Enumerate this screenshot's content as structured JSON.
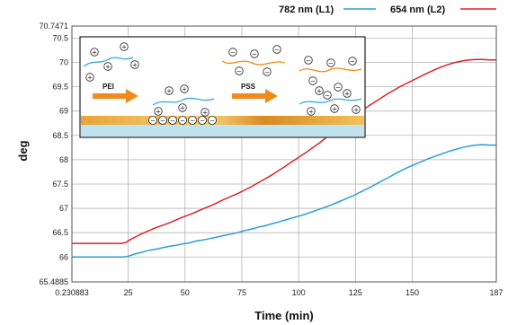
{
  "chart_data": {
    "type": "line",
    "xlabel": "Time (min)",
    "ylabel": "deg",
    "xlim": [
      0.230883,
      187
    ],
    "ylim": [
      65.4885,
      70.7471
    ],
    "x_ticks": [
      {
        "value": 0.230883,
        "label": "0.230883"
      },
      {
        "value": 25,
        "label": "25"
      },
      {
        "value": 50,
        "label": "50"
      },
      {
        "value": 75,
        "label": "75"
      },
      {
        "value": 100,
        "label": "100"
      },
      {
        "value": 125,
        "label": "125"
      },
      {
        "value": 150,
        "label": "150"
      },
      {
        "value": 187,
        "label": "187"
      }
    ],
    "y_ticks": [
      {
        "value": 65.4885,
        "label": "65.4885"
      },
      {
        "value": 66,
        "label": "66"
      },
      {
        "value": 66.5,
        "label": "66.5"
      },
      {
        "value": 67,
        "label": "67"
      },
      {
        "value": 67.5,
        "label": "67.5"
      },
      {
        "value": 68,
        "label": "68"
      },
      {
        "value": 68.5,
        "label": "68.5"
      },
      {
        "value": 69,
        "label": "69"
      },
      {
        "value": 69.5,
        "label": "69.5"
      },
      {
        "value": 70,
        "label": "70"
      },
      {
        "value": 70.5,
        "label": "70.5"
      },
      {
        "value": 70.7471,
        "label": "70.7471"
      }
    ],
    "grid": true,
    "legend_position": "top-right",
    "series": [
      {
        "name": "782 nm (L1)",
        "color": "#2a9fd0",
        "x": [
          0.23,
          23.0,
          24.5,
          26.5,
          28.5,
          30.5,
          32.5,
          34.5,
          37,
          40,
          43,
          46,
          49,
          52,
          55,
          58,
          61,
          64,
          67,
          70,
          73,
          76,
          79,
          82,
          85,
          88,
          91,
          94,
          97,
          100,
          103,
          106,
          109,
          112,
          115,
          118,
          121,
          124,
          127,
          130,
          133,
          136,
          139,
          142,
          145,
          148,
          151,
          154,
          157,
          160,
          163,
          166,
          169,
          172,
          175,
          178,
          181,
          184,
          187
        ],
        "y": [
          66.0,
          66.0,
          66.01,
          66.04,
          66.07,
          66.09,
          66.12,
          66.14,
          66.16,
          66.19,
          66.22,
          66.24,
          66.27,
          66.29,
          66.33,
          66.35,
          66.38,
          66.41,
          66.44,
          66.47,
          66.5,
          66.54,
          66.57,
          66.61,
          66.64,
          66.68,
          66.72,
          66.76,
          66.8,
          66.84,
          66.88,
          66.93,
          66.98,
          67.03,
          67.08,
          67.14,
          67.2,
          67.26,
          67.33,
          67.4,
          67.47,
          67.55,
          67.62,
          67.7,
          67.77,
          67.84,
          67.9,
          67.96,
          68.02,
          68.07,
          68.12,
          68.17,
          68.21,
          68.25,
          68.28,
          68.3,
          68.31,
          68.3,
          68.3
        ]
      },
      {
        "name": "654 nm (L2)",
        "color": "#d8242c",
        "x": [
          0.23,
          22.0,
          24.0,
          26.0,
          28.5,
          31,
          34,
          37,
          40,
          43,
          46,
          49,
          52,
          55,
          58,
          61,
          64,
          67,
          70,
          73,
          76,
          79,
          82,
          85,
          88,
          91,
          94,
          97,
          100,
          103,
          106,
          109,
          112,
          115,
          118,
          121,
          124,
          127,
          130,
          133,
          136,
          139,
          142,
          145,
          148,
          151,
          154,
          157,
          160,
          163,
          166,
          169,
          172,
          175,
          178,
          181,
          184,
          187
        ],
        "y": [
          66.28,
          66.28,
          66.3,
          66.36,
          66.42,
          66.48,
          66.54,
          66.6,
          66.65,
          66.7,
          66.76,
          66.82,
          66.87,
          66.93,
          66.99,
          67.05,
          67.11,
          67.18,
          67.24,
          67.3,
          67.37,
          67.44,
          67.52,
          67.6,
          67.68,
          67.77,
          67.86,
          67.96,
          68.05,
          68.14,
          68.24,
          68.34,
          68.45,
          68.56,
          68.67,
          68.78,
          68.88,
          68.98,
          69.08,
          69.17,
          69.26,
          69.35,
          69.43,
          69.51,
          69.58,
          69.65,
          69.72,
          69.79,
          69.85,
          69.91,
          69.96,
          70.0,
          70.03,
          70.05,
          70.06,
          70.06,
          70.05,
          70.05
        ]
      }
    ]
  },
  "inset": {
    "label_pei": "PEI",
    "label_pss": "PSS",
    "plus": "+",
    "minus": "−"
  }
}
